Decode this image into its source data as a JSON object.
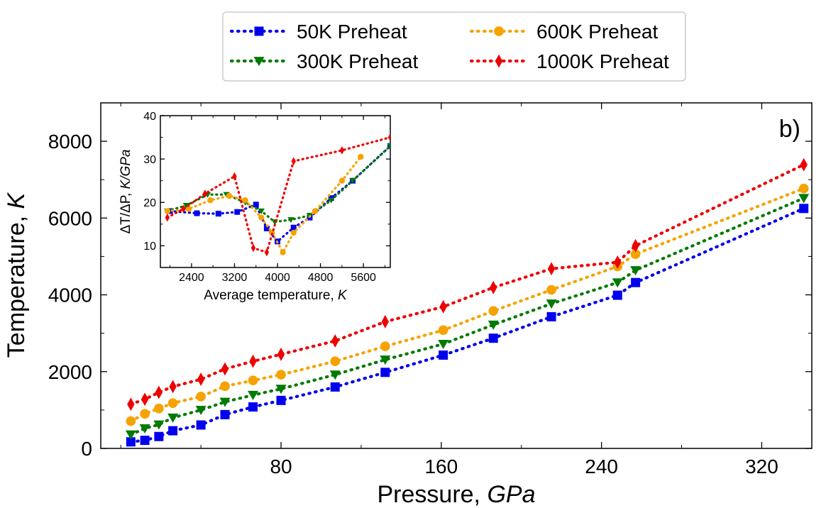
{
  "chart_data": [
    {
      "type": "line",
      "panel_label": "b)",
      "xlabel_main": "Pressure, ",
      "xlabel_unit": "GPa",
      "ylabel_main": "Temperature, ",
      "ylabel_unit": "K",
      "xlim": [
        -10,
        345
      ],
      "ylim": [
        0,
        9000
      ],
      "xticks": [
        80,
        160,
        240,
        320
      ],
      "yticks": [
        0,
        2000,
        4000,
        6000,
        8000
      ],
      "series": [
        {
          "name": "50K Preheat",
          "color": "#0000ee",
          "marker": "square",
          "x": [
            5,
            12,
            19,
            26,
            40,
            52,
            66,
            80,
            107,
            132,
            161,
            186,
            215,
            248,
            257,
            341
          ],
          "y": [
            170,
            210,
            310,
            460,
            610,
            880,
            1080,
            1250,
            1600,
            1980,
            2430,
            2870,
            3430,
            3990,
            4320,
            6250
          ]
        },
        {
          "name": "300K Preheat",
          "color": "#007a00",
          "marker": "triangle-down",
          "x": [
            5,
            12,
            19,
            26,
            40,
            52,
            66,
            80,
            107,
            132,
            161,
            186,
            215,
            248,
            257,
            341
          ],
          "y": [
            360,
            520,
            620,
            800,
            1000,
            1210,
            1390,
            1550,
            1920,
            2310,
            2720,
            3220,
            3770,
            4320,
            4640,
            6520
          ]
        },
        {
          "name": "600K Preheat",
          "color": "#f5a300",
          "marker": "circle",
          "x": [
            5,
            12,
            19,
            26,
            40,
            52,
            66,
            80,
            107,
            132,
            161,
            186,
            215,
            248,
            257,
            341
          ],
          "y": [
            710,
            900,
            1040,
            1180,
            1350,
            1620,
            1770,
            1920,
            2270,
            2660,
            3080,
            3580,
            4130,
            4740,
            5060,
            6770
          ]
        },
        {
          "name": "1000K Preheat",
          "color": "#ee0000",
          "marker": "diamond",
          "x": [
            5,
            12,
            19,
            26,
            40,
            52,
            66,
            80,
            107,
            132,
            161,
            186,
            215,
            248,
            257,
            341
          ],
          "y": [
            1150,
            1280,
            1460,
            1610,
            1800,
            2070,
            2270,
            2450,
            2800,
            3300,
            3690,
            4190,
            4680,
            4850,
            5280,
            7390
          ]
        }
      ]
    },
    {
      "type": "line",
      "xlabel_main": "Average temperature, ",
      "xlabel_unit": "K",
      "ylabel_main": "ΔT/ΔP, ",
      "ylabel_unit": "K/GPa",
      "xlim": [
        1820,
        6100
      ],
      "ylim": [
        5,
        40
      ],
      "xticks": [
        2400,
        3200,
        4000,
        4800,
        5600
      ],
      "yticks": [
        10,
        20,
        30,
        40
      ],
      "series": [
        {
          "name": "50K Preheat",
          "color": "#0000ee",
          "marker": "square",
          "x": [
            2000,
            2500,
            2900,
            3250,
            3600,
            3800,
            4000,
            4300,
            4600,
            5000,
            5400,
            6100
          ],
          "y": [
            18.0,
            17.5,
            17.4,
            17.8,
            19.5,
            14.0,
            11.0,
            14.2,
            16.5,
            21.0,
            25.0,
            33.0
          ]
        },
        {
          "name": "300K Preheat",
          "color": "#007a00",
          "marker": "triangle-down",
          "x": [
            1950,
            2300,
            2700,
            3050,
            3400,
            3700,
            3950,
            4250,
            4600,
            5000,
            5400,
            6100
          ],
          "y": [
            18.0,
            19.3,
            21.8,
            21.8,
            20.0,
            18.0,
            15.5,
            16.0,
            17.0,
            20.5,
            25.0,
            33.0
          ]
        },
        {
          "name": "600K Preheat",
          "color": "#f5a300",
          "marker": "circle",
          "x": [
            1950,
            2350,
            2750,
            3100,
            3400,
            3700,
            3900,
            4100,
            4300,
            4700,
            5200,
            5550
          ],
          "y": [
            18.0,
            18.5,
            20.5,
            21.5,
            20.5,
            16.5,
            13.0,
            8.5,
            13.0,
            18.0,
            25.0,
            30.5
          ]
        },
        {
          "name": "1000K Preheat",
          "color": "#ee0000",
          "marker": "diamond",
          "x": [
            1950,
            2250,
            2650,
            3200,
            3550,
            3800,
            4300,
            5200,
            6100
          ],
          "y": [
            16.5,
            18.5,
            22.0,
            26.0,
            9.5,
            8.5,
            29.5,
            32.0,
            35.0
          ]
        }
      ]
    }
  ]
}
